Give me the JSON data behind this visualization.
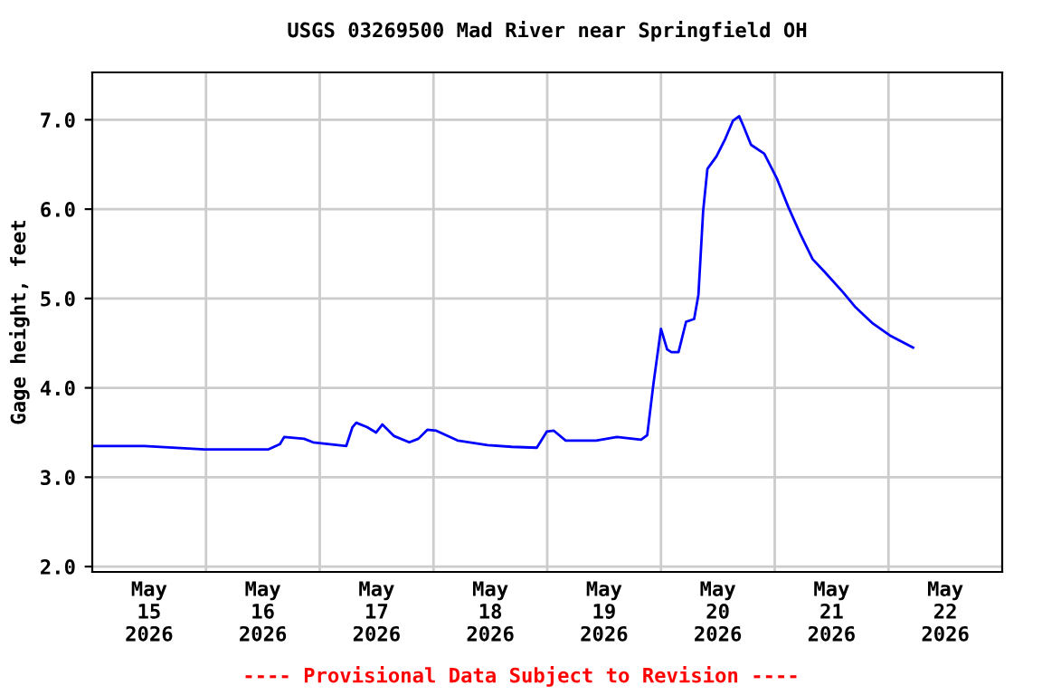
{
  "chart_data": {
    "type": "line",
    "title": "USGS 03269500 Mad River near Springfield OH",
    "ylabel": "Gage height, feet",
    "annotations": [
      "---- Provisional Data Subject to Revision ----"
    ],
    "series": [
      {
        "color": "#0000ff",
        "x": [
          "2026-05-15T00:06",
          "2026-05-15T11:00",
          "2026-05-15T23:42",
          "2026-05-16T13:06",
          "2026-05-16T15:36",
          "2026-05-16T16:30",
          "2026-05-16T20:42",
          "2026-05-16T22:36",
          "2026-05-17T05:36",
          "2026-05-17T06:54",
          "2026-05-17T07:42",
          "2026-05-17T10:00",
          "2026-05-17T11:54",
          "2026-05-17T13:12",
          "2026-05-17T15:42",
          "2026-05-17T18:54",
          "2026-05-17T20:48",
          "2026-05-17T22:42",
          "2026-05-18T00:36",
          "2026-05-18T05:06",
          "2026-05-18T11:24",
          "2026-05-18T16:30",
          "2026-05-18T21:48",
          "2026-05-18T23:54",
          "2026-05-19T01:24",
          "2026-05-19T03:54",
          "2026-05-19T10:18",
          "2026-05-19T14:42",
          "2026-05-19T19:48",
          "2026-05-19T21:06",
          "2026-05-19T22:24",
          "2026-05-20T00:00",
          "2026-05-20T01:18",
          "2026-05-20T02:12",
          "2026-05-20T03:42",
          "2026-05-20T05:18",
          "2026-05-20T07:00",
          "2026-05-20T07:54",
          "2026-05-20T08:54",
          "2026-05-20T09:48",
          "2026-05-20T11:42",
          "2026-05-20T13:36",
          "2026-05-20T15:12",
          "2026-05-20T16:30",
          "2026-05-20T17:24",
          "2026-05-20T19:00",
          "2026-05-20T21:48",
          "2026-05-21T00:24",
          "2026-05-21T02:54",
          "2026-05-21T05:30",
          "2026-05-21T08:00",
          "2026-05-21T10:30",
          "2026-05-21T14:24",
          "2026-05-21T16:54",
          "2026-05-21T20:42",
          "2026-05-22T00:30",
          "2026-05-22T05:12"
        ],
        "values": [
          3.35,
          3.35,
          3.31,
          3.31,
          3.37,
          3.45,
          3.43,
          3.39,
          3.35,
          3.56,
          3.61,
          3.56,
          3.5,
          3.59,
          3.46,
          3.39,
          3.43,
          3.53,
          3.52,
          3.41,
          3.36,
          3.34,
          3.33,
          3.51,
          3.52,
          3.41,
          3.41,
          3.45,
          3.42,
          3.47,
          4.04,
          4.66,
          4.43,
          4.4,
          4.4,
          4.74,
          4.77,
          5.04,
          5.98,
          6.45,
          6.59,
          6.79,
          6.99,
          7.04,
          6.93,
          6.72,
          6.62,
          6.35,
          6.02,
          5.71,
          5.44,
          5.3,
          5.07,
          4.91,
          4.72,
          4.58,
          4.45
        ]
      }
    ],
    "xlim": [
      "2026-05-15T00:00",
      "2026-05-23T00:00"
    ],
    "xticks": [
      {
        "value": "2026-05-15T12:00",
        "label": "May\n15\n2026"
      },
      {
        "value": "2026-05-16T12:00",
        "label": "May\n16\n2026"
      },
      {
        "value": "2026-05-17T12:00",
        "label": "May\n17\n2026"
      },
      {
        "value": "2026-05-18T12:00",
        "label": "May\n18\n2026"
      },
      {
        "value": "2026-05-19T12:00",
        "label": "May\n19\n2026"
      },
      {
        "value": "2026-05-20T12:00",
        "label": "May\n20\n2026"
      },
      {
        "value": "2026-05-21T12:00",
        "label": "May\n21\n2026"
      },
      {
        "value": "2026-05-22T12:00",
        "label": "May\n22\n2026"
      },
      {
        "value": "2026-05-16T00:00",
        "label": null
      },
      {
        "value": "2026-05-17T00:00",
        "label": null
      },
      {
        "value": "2026-05-18T00:00",
        "label": null
      },
      {
        "value": "2026-05-19T00:00",
        "label": null
      },
      {
        "value": "2026-05-20T00:00",
        "label": null
      },
      {
        "value": "2026-05-21T00:00",
        "label": null
      },
      {
        "value": "2026-05-22T00:00",
        "label": null
      }
    ],
    "ylim": [
      1.94,
      7.53
    ],
    "yticks": [
      {
        "value": 2,
        "label": "2.0"
      },
      {
        "value": 3,
        "label": "3.0"
      },
      {
        "value": 4,
        "label": "4.0"
      },
      {
        "value": 5,
        "label": "5.0"
      },
      {
        "value": 6,
        "label": "6.0"
      },
      {
        "value": 7,
        "label": "7.0"
      }
    ],
    "grid": true,
    "line_style": "solid"
  }
}
